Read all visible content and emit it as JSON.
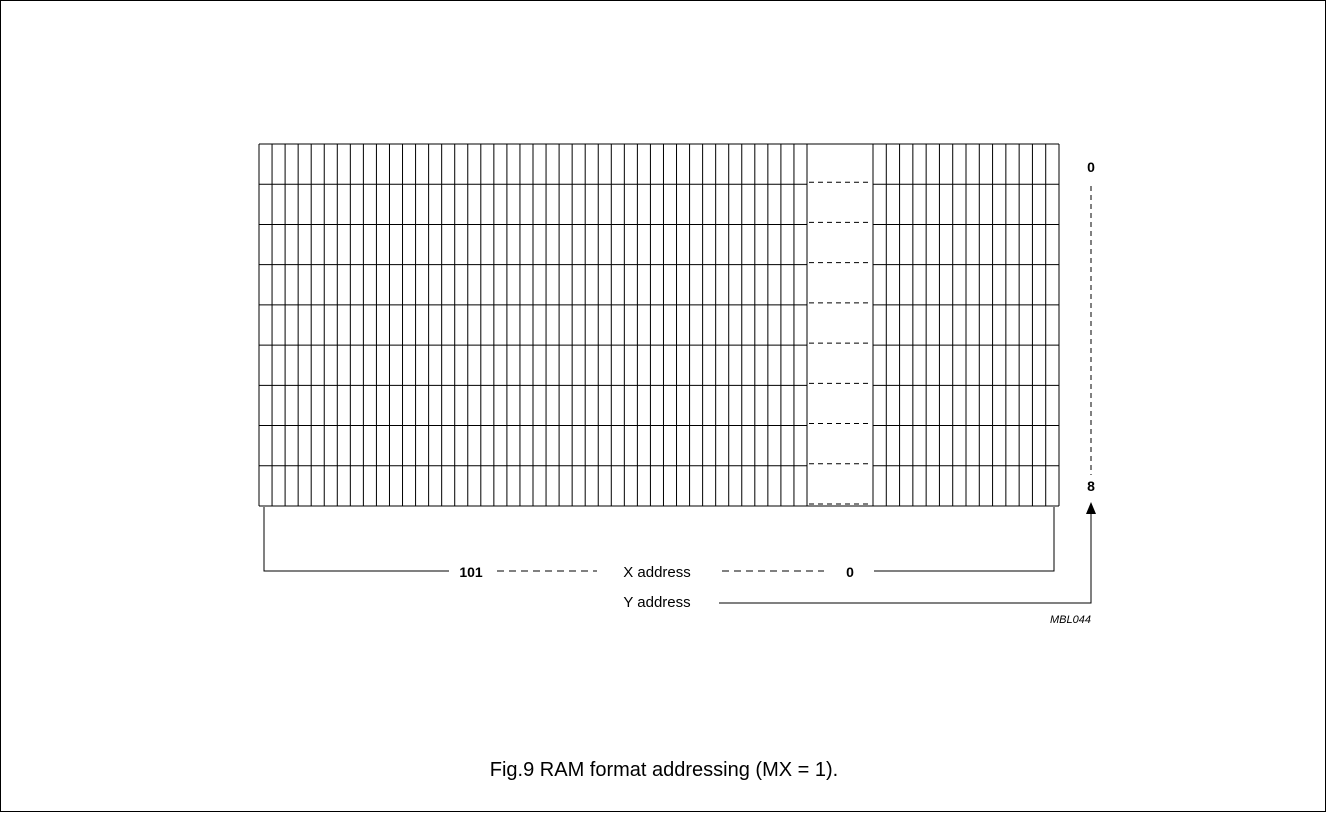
{
  "figure": {
    "code": "MBL044",
    "caption": "Fig.9  RAM format addressing (MX = 1)."
  },
  "ram": {
    "rows": 9,
    "x_address": {
      "label": "X address",
      "start": "101",
      "end": "0"
    },
    "y_address": {
      "label": "Y address",
      "top": "0",
      "bottom": "8"
    }
  }
}
